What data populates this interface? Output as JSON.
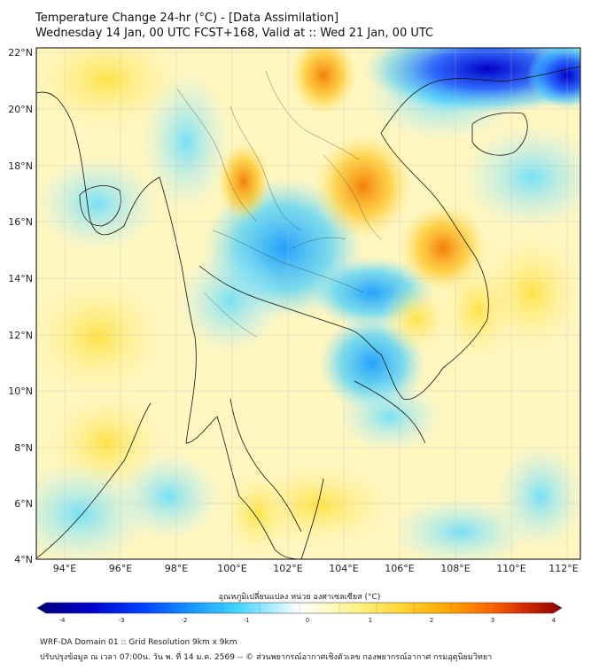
{
  "header": {
    "title_line1": "Temperature Change 24-hr (°C) - [Data Assimilation]",
    "title_line2": "Wednesday 14 Jan, 00 UTC FCST+168, Valid at :: Wed 21 Jan, 00 UTC"
  },
  "map": {
    "lon_labels": [
      "94°E",
      "96°E",
      "98°E",
      "100°E",
      "102°E",
      "104°E",
      "106°E",
      "108°E",
      "110°E",
      "112°E"
    ],
    "lat_labels": [
      "22°N",
      "20°N",
      "18°N",
      "16°N",
      "14°N",
      "12°N",
      "10°N",
      "8°N",
      "6°N",
      "4°N"
    ]
  },
  "colorbar": {
    "title": "อุณหภูมิเปลี่ยนแปลง หน่วย องศาเซลเซียส (°C)",
    "tick_labels": [
      "-4",
      "-3",
      "-2",
      "-1",
      "0",
      "1",
      "2",
      "3",
      "4"
    ],
    "min": -4,
    "max": 4,
    "colors": [
      "#00007a",
      "#0000cc",
      "#0033ff",
      "#1a8cff",
      "#33ccff",
      "#a8ecff",
      "#f4fbff",
      "#ffffff",
      "#fffbd0",
      "#fff080",
      "#ffd633",
      "#ffb300",
      "#ff7a00",
      "#e63300",
      "#990000"
    ]
  },
  "footer": {
    "line1": "WRF-DA Domain 01 :: Grid Resolution 9km x 9km",
    "line2": "ปรับปรุงข้อมูล ณ เวลา 07:00น. วัน พ. ที่ 14 ม.ค. 2569 -- © ส่วนพยากรณ์อากาศเชิงตัวเลข กองพยากรณ์อากาศ กรมอุตุนิยมวิทยา"
  }
}
